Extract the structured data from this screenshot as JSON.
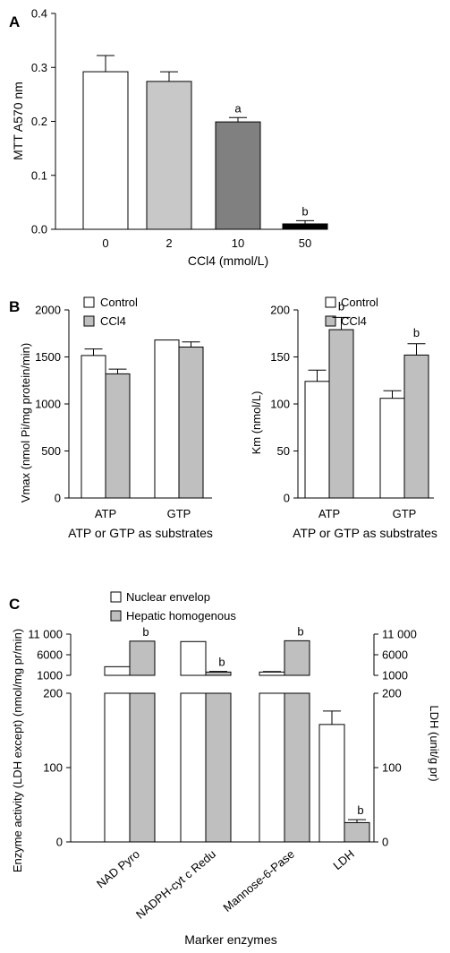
{
  "colors": {
    "white": "#ffffff",
    "light_gray": "#c8c8c8",
    "gray": "#bfbfbf",
    "dark_gray": "#808080",
    "black": "#000000"
  },
  "chart_data": [
    {
      "panel": "A",
      "type": "bar",
      "categories": [
        "0",
        "2",
        "10",
        "50"
      ],
      "values": [
        0.292,
        0.274,
        0.199,
        0.01
      ],
      "errors": [
        0.03,
        0.018,
        0.008,
        0.006
      ],
      "significance": [
        "",
        "",
        "a",
        "b"
      ],
      "bar_colors": [
        "#ffffff",
        "#c8c8c8",
        "#808080",
        "#000000"
      ],
      "xlabel": "CCl4 (mmol/L)",
      "ylabel": "MTT A570 nm",
      "ylim": [
        0,
        0.4
      ],
      "yticks": [
        "0.0",
        "0.1",
        "0.2",
        "0.3",
        "0.4"
      ]
    },
    {
      "panel": "B",
      "type": "bar",
      "categories": [
        "ATP",
        "GTP"
      ],
      "series": [
        {
          "name": "Control",
          "values": [
            1515,
            1680
          ],
          "errors": [
            70,
            0
          ],
          "color": "#ffffff"
        },
        {
          "name": "CCl4",
          "values": [
            1320,
            1605
          ],
          "errors": [
            50,
            55
          ],
          "color": "#bfbfbf"
        }
      ],
      "xlabel": "ATP or GTP as substrates",
      "ylabel": "Vmax (nmol Pi/mg protein/min)",
      "ylim": [
        0,
        2000
      ],
      "yticks": [
        "0",
        "500",
        "1000",
        "1500",
        "2000"
      ]
    },
    {
      "type": "bar",
      "categories": [
        "ATP",
        "GTP"
      ],
      "series": [
        {
          "name": "Control",
          "values": [
            124,
            106
          ],
          "errors": [
            12,
            8
          ],
          "color": "#ffffff"
        },
        {
          "name": "CCl4",
          "values": [
            179,
            152
          ],
          "errors": [
            13,
            12
          ],
          "color": "#bfbfbf"
        }
      ],
      "significance": {
        "CCl4": [
          "b",
          "b"
        ]
      },
      "xlabel": "ATP or GTP as substrates",
      "ylabel": "Km (nmol/L)",
      "ylim": [
        0,
        200
      ],
      "yticks": [
        "0",
        "50",
        "100",
        "150",
        "200"
      ]
    },
    {
      "panel": "C",
      "type": "bar",
      "categories": [
        "NAD Pyro",
        "NADPH-cyt c Redu",
        "Mannose-6-Pase",
        "LDH"
      ],
      "series": [
        {
          "name": "Nuclear envelop",
          "values": [
            3100,
            9200,
            1800,
            158
          ],
          "errors": [
            0,
            0,
            120,
            18
          ],
          "color": "#ffffff"
        },
        {
          "name": "Hepatic homogenous",
          "values": [
            9300,
            1800,
            9400,
            26
          ],
          "errors": [
            0,
            150,
            0,
            4
          ],
          "color": "#bfbfbf"
        }
      ],
      "significance": {
        "Hepatic homogenous": [
          "b",
          "b",
          "b",
          "b"
        ]
      },
      "xlabel": "Marker enzymes",
      "ylabel": "Enzyme activity (LDH except) (nmol/mg pr/min)",
      "y2label": "LDH (unit/g pr)",
      "upper_ylim": [
        1000,
        11000
      ],
      "upper_yticks": [
        "1000",
        "6000",
        "11 000"
      ],
      "lower_ylim": [
        0,
        200
      ],
      "lower_yticks": [
        "0",
        "100",
        "200"
      ]
    }
  ]
}
